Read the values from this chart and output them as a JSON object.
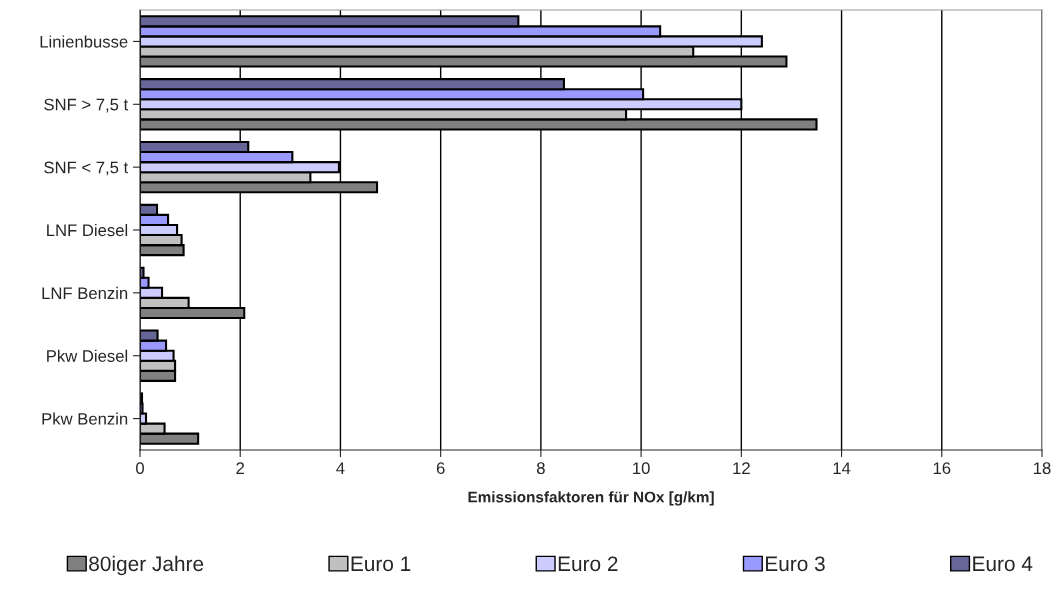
{
  "chart_data": {
    "type": "bar",
    "orientation": "horizontal",
    "xlabel": "Emissionsfaktoren für NOx [g/km]",
    "categories": [
      "Linienbusse",
      "SNF > 7,5 t",
      "SNF < 7,5 t",
      "LNF Diesel",
      "LNF Benzin",
      "Pkw Diesel",
      "Pkw Benzin"
    ],
    "series": [
      {
        "name": "80iger Jahre",
        "color": "#808080",
        "values": [
          12.9,
          13.5,
          4.73,
          0.87,
          2.08,
          0.7,
          1.16
        ]
      },
      {
        "name": "Euro 1",
        "color": "#c0c0c0",
        "values": [
          11.04,
          9.7,
          3.4,
          0.83,
          0.97,
          0.7,
          0.49
        ]
      },
      {
        "name": "Euro 2",
        "color": "#ccccff",
        "values": [
          12.41,
          12.0,
          3.97,
          0.74,
          0.44,
          0.67,
          0.12
        ]
      },
      {
        "name": "Euro 3",
        "color": "#9999ff",
        "values": [
          10.38,
          10.04,
          3.04,
          0.56,
          0.17,
          0.52,
          0.05
        ]
      },
      {
        "name": "Euro 4",
        "color": "#666699",
        "values": [
          7.55,
          8.46,
          2.16,
          0.34,
          0.07,
          0.35,
          0.04
        ]
      }
    ],
    "xlim": [
      0,
      18
    ],
    "xticks": [
      0,
      2,
      4,
      6,
      8,
      10,
      12,
      14,
      16,
      18
    ],
    "grid": "x",
    "legend": "bottom"
  }
}
